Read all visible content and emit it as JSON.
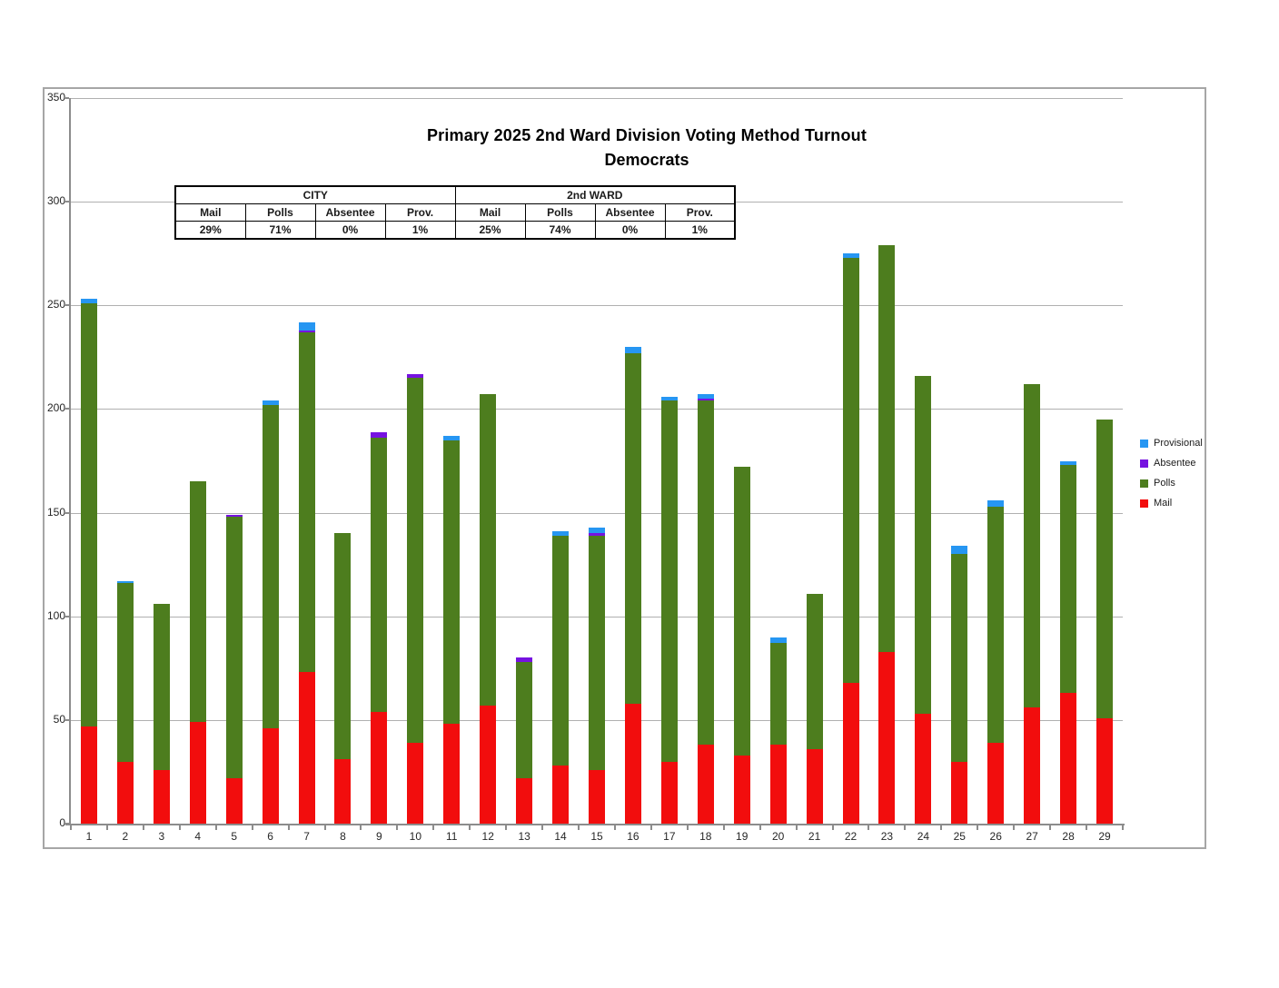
{
  "title": {
    "line1": "Primary 2025 2nd Ward Division Voting Method Turnout",
    "line2": "Democrats"
  },
  "summary_table": {
    "group_headers": [
      "CITY",
      "2nd WARD"
    ],
    "col_headers": [
      "Mail",
      "Polls",
      "Absentee",
      "Prov.",
      "Mail",
      "Polls",
      "Absentee",
      "Prov."
    ],
    "values": [
      "29%",
      "71%",
      "0%",
      "1%",
      "25%",
      "74%",
      "0%",
      "1%"
    ]
  },
  "legend": [
    {
      "label": "Provisional",
      "color": "#2696f2"
    },
    {
      "label": "Absentee",
      "color": "#7612e0"
    },
    {
      "label": "Polls",
      "color": "#4d7d1e"
    },
    {
      "label": "Mail",
      "color": "#f20d0d"
    }
  ],
  "colors": {
    "grid": "#b0b0b0",
    "axis": "#8c8c8c",
    "frame": "#a6a6a6"
  },
  "chart_data": {
    "type": "bar",
    "stacked": true,
    "title": "Primary 2025 2nd Ward Division Voting Method Turnout — Democrats",
    "xlabel": "",
    "ylabel": "",
    "ylim": [
      0,
      350
    ],
    "ytick_step": 50,
    "yticks": [
      0,
      50,
      100,
      150,
      200,
      250,
      300,
      350
    ],
    "grid": true,
    "legend_position": "right",
    "categories": [
      "1",
      "2",
      "3",
      "4",
      "5",
      "6",
      "7",
      "8",
      "9",
      "10",
      "11",
      "12",
      "13",
      "14",
      "15",
      "16",
      "17",
      "18",
      "19",
      "20",
      "21",
      "22",
      "23",
      "24",
      "25",
      "26",
      "27",
      "28",
      "29"
    ],
    "series": [
      {
        "name": "Mail",
        "color": "#f20d0d",
        "values": [
          47,
          30,
          26,
          49,
          22,
          46,
          73,
          31,
          54,
          39,
          48,
          57,
          22,
          28,
          26,
          58,
          30,
          38,
          33,
          38,
          36,
          68,
          83,
          53,
          30,
          39,
          56,
          63,
          51
        ]
      },
      {
        "name": "Polls",
        "color": "#4d7d1e",
        "values": [
          204,
          86,
          80,
          116,
          126,
          156,
          164,
          109,
          132,
          176,
          137,
          150,
          56,
          111,
          113,
          169,
          174,
          166,
          139,
          49,
          75,
          205,
          196,
          163,
          100,
          114,
          156,
          110,
          144
        ]
      },
      {
        "name": "Absentee",
        "color": "#7612e0",
        "values": [
          0,
          0,
          0,
          0,
          1,
          0,
          1,
          0,
          3,
          2,
          0,
          0,
          2,
          0,
          1,
          0,
          0,
          1,
          0,
          0,
          0,
          0,
          0,
          0,
          0,
          0,
          0,
          0,
          0
        ]
      },
      {
        "name": "Provisional",
        "color": "#2696f2",
        "values": [
          2,
          1,
          0,
          0,
          0,
          2,
          4,
          0,
          0,
          0,
          2,
          0,
          0,
          2,
          3,
          3,
          2,
          2,
          0,
          3,
          0,
          2,
          0,
          0,
          4,
          3,
          0,
          2,
          0
        ]
      }
    ]
  }
}
